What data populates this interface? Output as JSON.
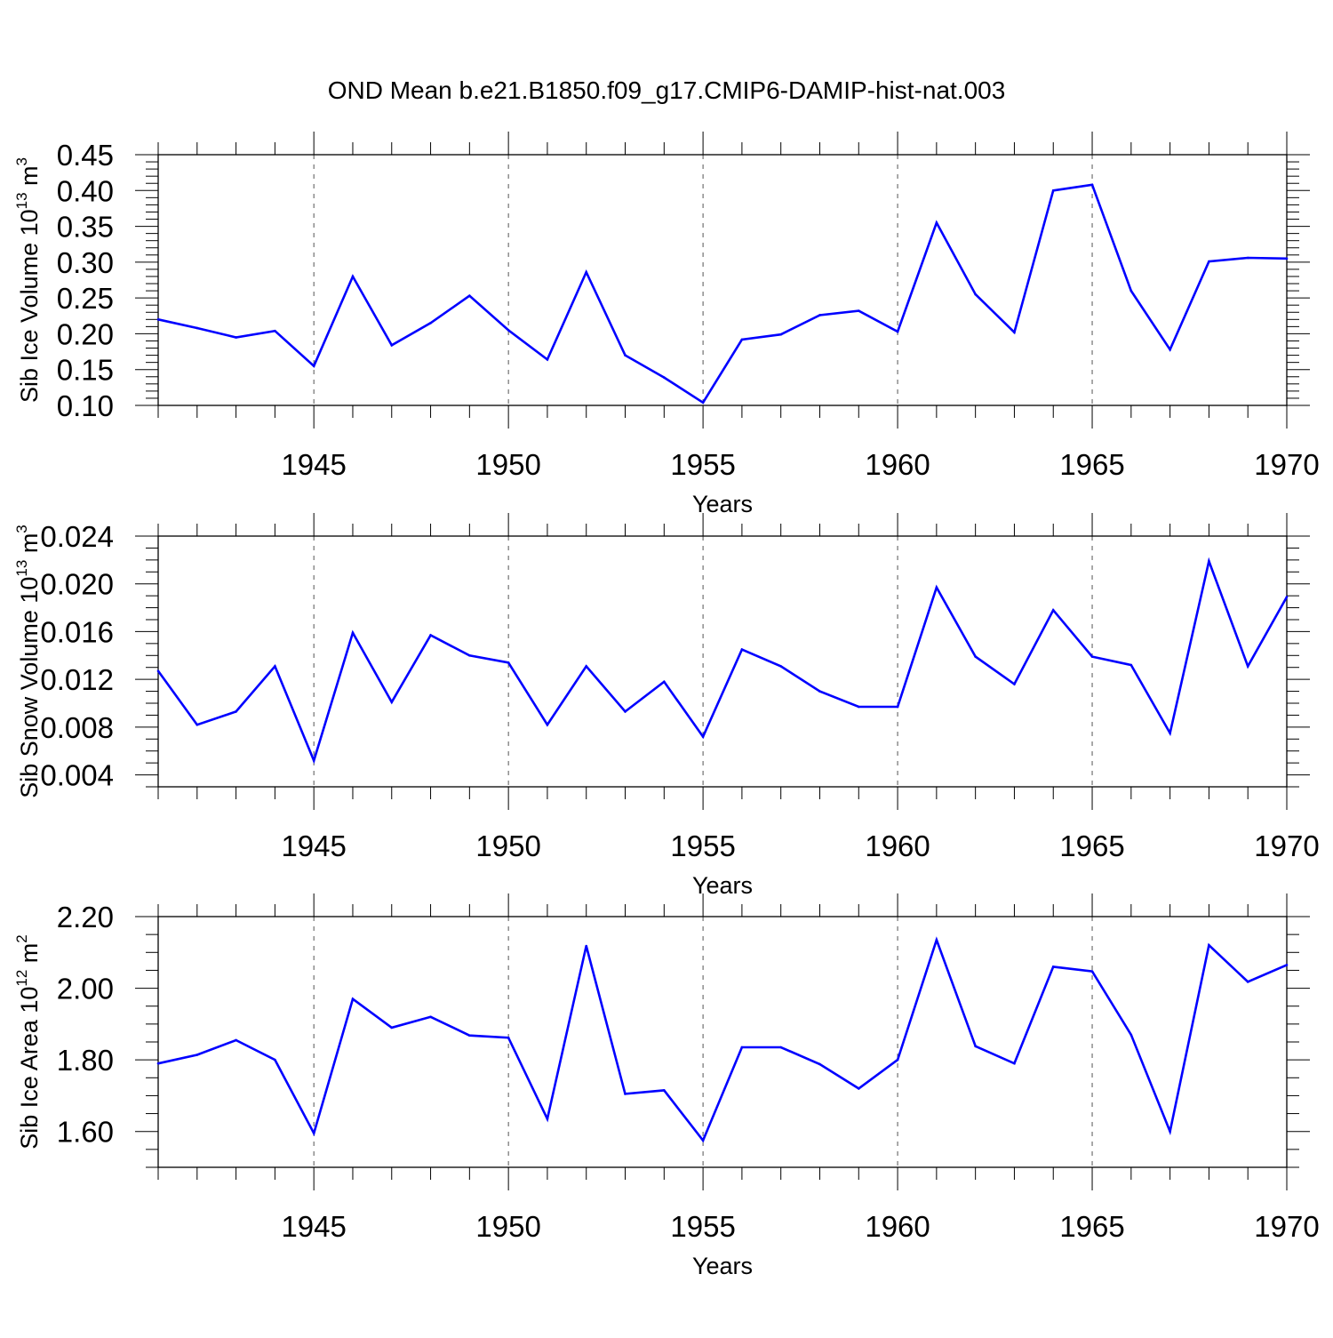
{
  "figure": {
    "title": "OND Mean b.e21.B1850.f09_g17.CMIP6-DAMIP-hist-nat.003",
    "line_color": "#0000ff",
    "grid_color": "#555555"
  },
  "chart_data": [
    {
      "type": "line",
      "name": "ice-volume",
      "ylabel_prefix": "Sib Ice Volume 10",
      "ylabel_exp": "13",
      "ylabel_unit": " m",
      "ylabel_unit_exp": "3",
      "xlabel": "Years",
      "xlim": [
        1941,
        1970
      ],
      "ylim": [
        0.1,
        0.45
      ],
      "x_ticks": [
        1945,
        1950,
        1955,
        1960,
        1965,
        1970
      ],
      "x_tick_labels": [
        "1945",
        "1950",
        "1955",
        "1960",
        "1965",
        "1970"
      ],
      "y_ticks": [
        0.1,
        0.15,
        0.2,
        0.25,
        0.3,
        0.35,
        0.4,
        0.45
      ],
      "y_tick_labels": [
        "0.10",
        "0.15",
        "0.20",
        "0.25",
        "0.30",
        "0.35",
        "0.40",
        "0.45"
      ],
      "y_minor_step": 0.01,
      "grid_x": [
        1945,
        1950,
        1955,
        1960,
        1965
      ],
      "x": [
        1941,
        1942,
        1943,
        1944,
        1945,
        1946,
        1947,
        1948,
        1949,
        1950,
        1951,
        1952,
        1953,
        1954,
        1955,
        1956,
        1957,
        1958,
        1959,
        1960,
        1961,
        1962,
        1963,
        1964,
        1965,
        1966,
        1967,
        1968,
        1969,
        1970
      ],
      "values": [
        0.22,
        0.208,
        0.195,
        0.204,
        0.155,
        0.28,
        0.184,
        0.215,
        0.253,
        0.205,
        0.164,
        0.286,
        0.17,
        0.139,
        0.104,
        0.192,
        0.199,
        0.226,
        0.232,
        0.203,
        0.355,
        0.255,
        0.202,
        0.4,
        0.408,
        0.26,
        0.178,
        0.301,
        0.306,
        0.305
      ]
    },
    {
      "type": "line",
      "name": "snow-volume",
      "ylabel_prefix": "Sib Snow Volume 10",
      "ylabel_exp": "13",
      "ylabel_unit": " m",
      "ylabel_unit_exp": "3",
      "xlabel": "Years",
      "xlim": [
        1941,
        1970
      ],
      "ylim": [
        0.003,
        0.024
      ],
      "x_ticks": [
        1945,
        1950,
        1955,
        1960,
        1965,
        1970
      ],
      "x_tick_labels": [
        "1945",
        "1950",
        "1955",
        "1960",
        "1965",
        "1970"
      ],
      "y_ticks": [
        0.004,
        0.008,
        0.012,
        0.016,
        0.02,
        0.024
      ],
      "y_tick_labels": [
        "0.004",
        "0.008",
        "0.012",
        "0.016",
        "0.020",
        "0.024"
      ],
      "y_minor_step": 0.001,
      "grid_x": [
        1945,
        1950,
        1955,
        1960,
        1965
      ],
      "x": [
        1941,
        1942,
        1943,
        1944,
        1945,
        1946,
        1947,
        1948,
        1949,
        1950,
        1951,
        1952,
        1953,
        1954,
        1955,
        1956,
        1957,
        1958,
        1959,
        1960,
        1961,
        1962,
        1963,
        1964,
        1965,
        1966,
        1967,
        1968,
        1969,
        1970
      ],
      "values": [
        0.0127,
        0.0082,
        0.0093,
        0.0131,
        0.0052,
        0.0159,
        0.0101,
        0.0157,
        0.014,
        0.0134,
        0.0082,
        0.0131,
        0.0093,
        0.0118,
        0.0072,
        0.0145,
        0.0131,
        0.011,
        0.0097,
        0.0097,
        0.0197,
        0.0139,
        0.0116,
        0.0178,
        0.0139,
        0.0132,
        0.0075,
        0.0219,
        0.0131,
        0.0189
      ]
    },
    {
      "type": "line",
      "name": "ice-area",
      "ylabel_prefix": "Sib Ice Area 10",
      "ylabel_exp": "12",
      "ylabel_unit": " m",
      "ylabel_unit_exp": "2",
      "xlabel": "Years",
      "xlim": [
        1941,
        1970
      ],
      "ylim": [
        1.5,
        2.2
      ],
      "x_ticks": [
        1945,
        1950,
        1955,
        1960,
        1965,
        1970
      ],
      "x_tick_labels": [
        "1945",
        "1950",
        "1955",
        "1960",
        "1965",
        "1970"
      ],
      "y_ticks": [
        1.6,
        1.8,
        2.0,
        2.2
      ],
      "y_tick_labels": [
        "1.60",
        "1.80",
        "2.00",
        "2.20"
      ],
      "y_minor_step": 0.05,
      "grid_x": [
        1945,
        1950,
        1955,
        1960,
        1965
      ],
      "x": [
        1941,
        1942,
        1943,
        1944,
        1945,
        1946,
        1947,
        1948,
        1949,
        1950,
        1951,
        1952,
        1953,
        1954,
        1955,
        1956,
        1957,
        1958,
        1959,
        1960,
        1961,
        1962,
        1963,
        1964,
        1965,
        1966,
        1967,
        1968,
        1969,
        1970
      ],
      "values": [
        1.79,
        1.814,
        1.855,
        1.8,
        1.595,
        1.97,
        1.89,
        1.92,
        1.868,
        1.862,
        1.635,
        2.118,
        1.705,
        1.715,
        1.575,
        1.835,
        1.835,
        1.788,
        1.72,
        1.8,
        2.135,
        1.838,
        1.79,
        2.06,
        2.047,
        1.87,
        1.6,
        2.12,
        2.018,
        2.065
      ]
    }
  ]
}
